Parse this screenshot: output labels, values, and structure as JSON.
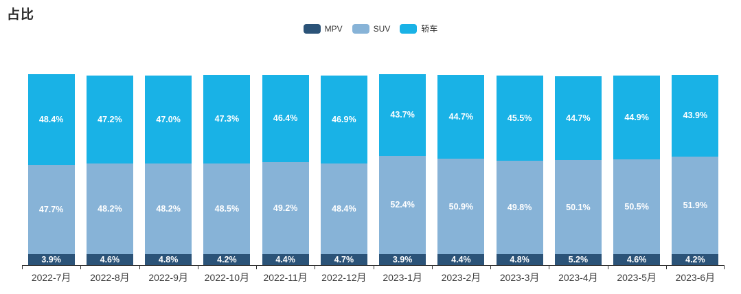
{
  "chart_data": {
    "type": "bar",
    "stacked": true,
    "orientation": "vertical",
    "title": "占比",
    "unit": "%",
    "categories": [
      "2022-7月",
      "2022-8月",
      "2022-9月",
      "2022-10月",
      "2022-11月",
      "2022-12月",
      "2023-1月",
      "2023-2月",
      "2023-3月",
      "2023-4月",
      "2023-5月",
      "2023-6月"
    ],
    "series": [
      {
        "name": "MPV",
        "color": "#2b5378",
        "values": [
          3.9,
          4.6,
          4.8,
          4.2,
          4.4,
          4.7,
          3.9,
          4.4,
          4.8,
          5.2,
          4.6,
          4.2
        ],
        "labels": [
          "3.9%",
          "4.6%",
          "4.8%",
          "4.2%",
          "4.4%",
          "4.7%",
          "3.9%",
          "4.4%",
          "4.8%",
          "5.2%",
          "4.6%",
          "4.2%"
        ]
      },
      {
        "name": "SUV",
        "color": "#87b3d7",
        "values": [
          47.7,
          48.2,
          48.2,
          48.5,
          49.2,
          48.4,
          52.4,
          50.9,
          49.8,
          50.1,
          50.5,
          51.9
        ],
        "labels": [
          "47.7%",
          "48.2%",
          "48.2%",
          "48.5%",
          "49.2%",
          "48.4%",
          "52.4%",
          "50.9%",
          "49.8%",
          "50.1%",
          "50.5%",
          "51.9%"
        ]
      },
      {
        "name": "轿车",
        "color": "#19b2e6",
        "values": [
          48.4,
          47.2,
          47.0,
          47.3,
          46.4,
          46.9,
          43.7,
          44.7,
          45.5,
          44.7,
          44.9,
          43.9
        ],
        "labels": [
          "48.4%",
          "47.2%",
          "47.0%",
          "47.3%",
          "46.4%",
          "46.9%",
          "43.7%",
          "44.7%",
          "45.5%",
          "44.7%",
          "44.9%",
          "43.9%"
        ]
      }
    ],
    "legend": {
      "position": "top-center",
      "items": [
        "MPV",
        "SUV",
        "轿车"
      ]
    },
    "layout": {
      "grid": false,
      "y_axis_visible": false,
      "x_axis_line": true,
      "label_position": "inside",
      "label_color": "#ffffff",
      "axis_color": "#333333"
    }
  }
}
